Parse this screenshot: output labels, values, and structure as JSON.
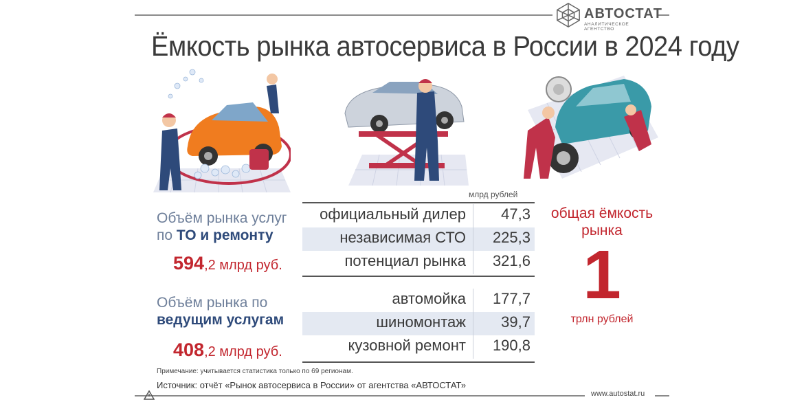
{
  "logo": {
    "name": "АВТОСТАТ",
    "subtitle": "АНАЛИТИЧЕСКОЕ АГЕНТСТВО"
  },
  "title": "Ёмкость рынка автосервиса в России в 2024 году",
  "illustrations": {
    "left": "car-wash-illustration",
    "center": "car-lift-illustration",
    "right": "tire-service-illustration"
  },
  "unit": "млрд рублей",
  "blocks": [
    {
      "label_line1": "Объём рынка услуг",
      "label_line2_prefix": "по ",
      "label_line2_bold": "ТО и ремонту",
      "total_big": "594",
      "total_rest": ",2 млрд руб.",
      "rows": [
        {
          "name": "официальный дилер",
          "value": "47,3"
        },
        {
          "name": "независимая  СТО",
          "value": "225,3"
        },
        {
          "name": "потенциал рынка",
          "value": "321,6"
        }
      ]
    },
    {
      "label_line1": "Объём рынка по",
      "label_line2_prefix": "",
      "label_line2_bold": "ведущим услугам",
      "total_big": "408",
      "total_rest": ",2 млрд руб.",
      "rows": [
        {
          "name": "автомойка",
          "value": "177,7"
        },
        {
          "name": "шиномонтаж",
          "value": "39,7"
        },
        {
          "name": "кузовной ремонт",
          "value": "190,8"
        }
      ]
    }
  ],
  "total": {
    "caption": "общая ёмкость рынка",
    "value": "1",
    "unit": "трлн рублей"
  },
  "note": "Примечание: учитывается статистика только по 69 регионам.",
  "source": "Источник: отчёт «Рынок автосервиса в России» от агентства «АВТОСТАТ»",
  "site": "www.autostat.ru",
  "colors": {
    "accent_red": "#c2262e",
    "accent_blue": "#2e4a7a",
    "row_shade": "#e4e9f2"
  }
}
